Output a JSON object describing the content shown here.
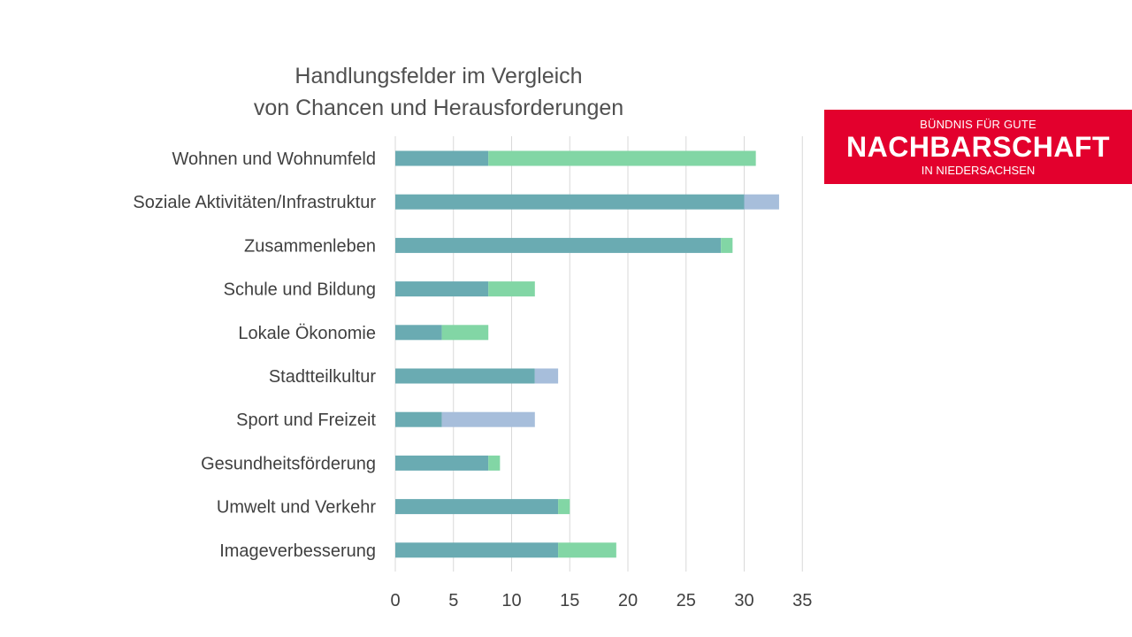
{
  "chart_data": {
    "type": "bar",
    "orientation": "horizontal",
    "stacked": true,
    "title_lines": [
      "Handlungsfelder im Vergleich",
      "von Chancen und Herausforderungen"
    ],
    "categories": [
      "Wohnen und Wohnumfeld",
      "Soziale Aktivitäten/Infrastruktur",
      "Zusammenleben",
      "Schule und Bildung",
      "Lokale Ökonomie",
      "Stadtteilkultur",
      "Sport und Freizeit",
      "Gesundheitsförderung",
      "Umwelt und Verkehr",
      "Imageverbesserung"
    ],
    "series": [
      {
        "color": "#6aabb2",
        "values": [
          8,
          30,
          28,
          8,
          4,
          12,
          4,
          8,
          14,
          14
        ]
      },
      {
        "color": "#82d6a5",
        "values": [
          23,
          0,
          1,
          4,
          4,
          0,
          0,
          1,
          1,
          5
        ]
      },
      {
        "color": "#a7bedb",
        "values": [
          0,
          3,
          0,
          0,
          0,
          2,
          8,
          0,
          0,
          0
        ]
      }
    ],
    "xlim": [
      0,
      35
    ],
    "xticks": [
      0,
      5,
      10,
      15,
      20,
      25,
      30,
      35
    ],
    "grid": true,
    "legend": "none"
  },
  "logo": {
    "top": "BÜNDNIS FÜR GUTE",
    "main": "NACHBARSCHAFT",
    "bottom": "IN NIEDERSACHSEN",
    "color": "#e3002d"
  }
}
